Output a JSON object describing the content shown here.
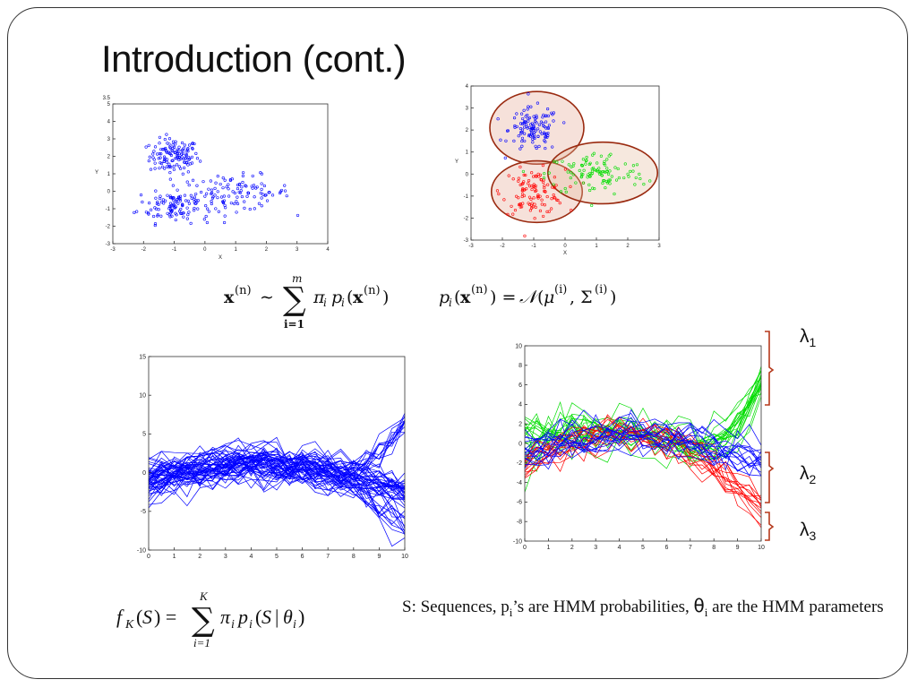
{
  "slide": {
    "title": "Introduction (cont.)",
    "caption": {
      "p1": "S: Sequences, p",
      "p1_sub": "i",
      "p2": "’s are HMM probabilities, ",
      "theta": "θ",
      "theta_sub": "i",
      "p3": " are the HMM parameters"
    },
    "formula_mixture": "x^(n) ~ Σ_{i=1}^{m} π_i p_i(x^(n))",
    "formula_gaussian": "p_i(x^(n)) = N(μ^(i), Σ^(i))",
    "formula_hmm_mixture": "f_K(S) = Σ_{i=1}^{K} π_i p_i(S | θ_i)",
    "lambdas": [
      {
        "symbol": "λ",
        "sub": "1"
      },
      {
        "symbol": "λ",
        "sub": "2"
      },
      {
        "symbol": "λ",
        "sub": "3"
      }
    ],
    "colors": {
      "blue": "#0000ff",
      "red": "#ff0000",
      "green": "#00dd00",
      "bracket": "#b5391c",
      "cluster_outline": "#9a2a10"
    }
  },
  "chart_data": [
    {
      "type": "scatter",
      "xlabel": "X",
      "ylabel": "Y",
      "xlim": [
        -3,
        4
      ],
      "ylim": [
        -3,
        5
      ],
      "x_ticks": [
        "-3",
        "-2",
        "-1",
        "0",
        "1",
        "2",
        "3",
        "4"
      ],
      "y_ticks": [
        "5",
        "4",
        "3",
        "2",
        "1",
        "0",
        "-1",
        "-2",
        "-3"
      ],
      "y_extra_tick": "3.5",
      "series": [
        {
          "color": "blue",
          "clusters": [
            {
              "center": [
                -1,
                2
              ],
              "spread": [
                0.4,
                0.5
              ],
              "n": 130
            },
            {
              "center": [
                -1,
                -0.8
              ],
              "spread": [
                0.6,
                0.5
              ],
              "n": 110
            },
            {
              "center": [
                1,
                -0.1
              ],
              "spread": [
                0.9,
                0.5
              ],
              "n": 110
            }
          ]
        }
      ]
    },
    {
      "type": "scatter",
      "xlabel": "X",
      "ylabel": "Y",
      "xlim": [
        -3,
        3
      ],
      "ylim": [
        -3,
        4
      ],
      "x_ticks": [
        "-3",
        "-2",
        "-1",
        "0",
        "1",
        "2",
        "3"
      ],
      "y_ticks": [
        "4",
        "3",
        "2",
        "1",
        "0",
        "-1",
        "-2",
        "-3"
      ],
      "series": [
        {
          "color": "blue",
          "center": [
            -1,
            2
          ],
          "spread": [
            0.4,
            0.5
          ],
          "n": 120
        },
        {
          "color": "red",
          "center": [
            -1,
            -0.8
          ],
          "spread": [
            0.5,
            0.5
          ],
          "n": 110
        },
        {
          "color": "green",
          "center": [
            1,
            0
          ],
          "spread": [
            0.8,
            0.5
          ],
          "n": 110
        }
      ],
      "ellipses": [
        {
          "center": [
            -0.9,
            2.1
          ],
          "radii": [
            1.5,
            1.65
          ]
        },
        {
          "center": [
            -0.9,
            -0.8
          ],
          "radii": [
            1.45,
            1.4
          ]
        },
        {
          "center": [
            1.2,
            0.05
          ],
          "radii": [
            1.75,
            1.4
          ]
        }
      ]
    },
    {
      "type": "line",
      "xlim": [
        0,
        10
      ],
      "ylim": [
        -10,
        15
      ],
      "x_ticks": [
        "0",
        "1",
        "2",
        "3",
        "4",
        "5",
        "6",
        "7",
        "8",
        "9",
        "10"
      ],
      "y_ticks": [
        "15",
        "10",
        "5",
        "0",
        "-5",
        "-10"
      ],
      "series": [
        {
          "color": "blue",
          "shape": "rising",
          "count": 12
        },
        {
          "color": "blue",
          "shape": "arch",
          "count": 30
        },
        {
          "color": "blue",
          "shape": "falling",
          "count": 14
        }
      ]
    },
    {
      "type": "line",
      "xlim": [
        0,
        10
      ],
      "ylim": [
        -10,
        10
      ],
      "x_ticks": [
        "0",
        "1",
        "2",
        "3",
        "4",
        "5",
        "6",
        "7",
        "8",
        "9",
        "10"
      ],
      "y_ticks": [
        "10",
        "8",
        "6",
        "4",
        "2",
        "0",
        "-2",
        "-4",
        "-6",
        "-8",
        "-10"
      ],
      "series": [
        {
          "color": "green",
          "shape": "rising",
          "count": 20
        },
        {
          "color": "red",
          "shape": "falling",
          "count": 14
        },
        {
          "color": "blue",
          "shape": "arch",
          "count": 16
        }
      ]
    }
  ]
}
